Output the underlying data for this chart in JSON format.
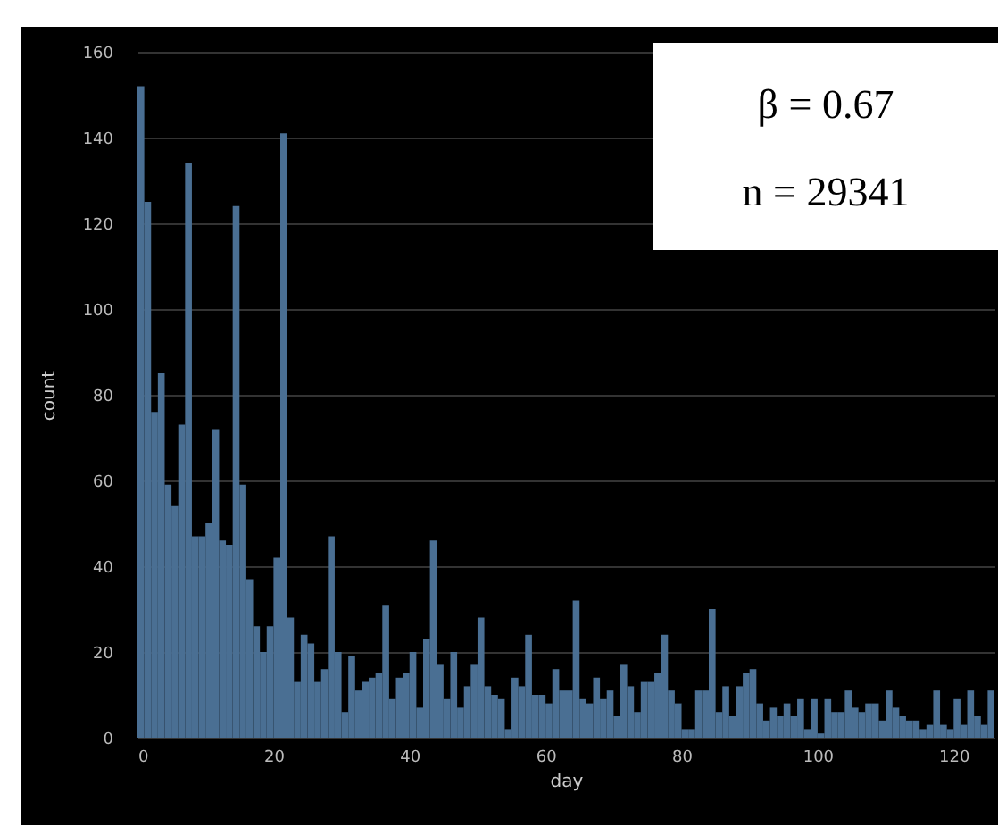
{
  "chart_data": {
    "type": "histogram",
    "xlabel": "day",
    "ylabel": "count",
    "color": "#4a6f93",
    "bins": [
      0,
      1,
      2,
      3,
      4,
      5,
      6,
      7,
      8,
      9,
      10,
      11,
      12,
      13,
      14,
      15,
      16,
      17,
      18,
      19,
      20,
      21,
      22,
      23,
      24,
      25,
      26,
      27,
      28,
      29,
      30,
      31,
      32,
      33,
      34,
      35,
      36,
      37,
      38,
      39,
      40,
      41,
      42,
      43,
      44,
      45,
      46,
      47,
      48,
      49,
      50,
      51,
      52,
      53,
      54,
      55,
      56,
      57,
      58,
      59,
      60,
      61,
      62,
      63,
      64,
      65,
      66,
      67,
      68,
      69,
      70,
      71,
      72,
      73,
      74,
      75,
      76,
      77,
      78,
      79,
      80,
      81,
      82,
      83,
      84,
      85,
      86,
      87,
      88,
      89,
      90,
      91,
      92,
      93,
      94,
      95,
      96,
      97,
      98,
      99,
      100,
      101,
      102,
      103,
      104,
      105,
      106,
      107,
      108,
      109,
      110,
      111,
      112,
      113,
      114,
      115,
      116,
      117,
      118,
      119,
      120,
      121,
      122,
      123,
      124,
      125,
      126
    ],
    "values": [
      152,
      125,
      76,
      85,
      59,
      54,
      73,
      134,
      47,
      47,
      50,
      72,
      46,
      45,
      124,
      59,
      37,
      26,
      20,
      26,
      42,
      141,
      28,
      13,
      24,
      22,
      13,
      16,
      47,
      20,
      6,
      19,
      11,
      13,
      14,
      15,
      31,
      9,
      14,
      15,
      20,
      7,
      23,
      46,
      17,
      9,
      20,
      7,
      12,
      17,
      28,
      12,
      10,
      9,
      2,
      14,
      12,
      24,
      10,
      10,
      8,
      16,
      11,
      11,
      32,
      9,
      8,
      14,
      9,
      11,
      5,
      17,
      12,
      6,
      13,
      13,
      15,
      24,
      11,
      8,
      2,
      2,
      11,
      11,
      30,
      6,
      12,
      5,
      12,
      15,
      16,
      8,
      4,
      7,
      5,
      8,
      5,
      9,
      2,
      9,
      1,
      9,
      6,
      6,
      11,
      7,
      6,
      8,
      8,
      4,
      11,
      7,
      5,
      4,
      4,
      2,
      3,
      11,
      3,
      2,
      9,
      3,
      11,
      5,
      3,
      11
    ],
    "xlim": [
      0,
      126
    ],
    "xticks": [
      0,
      20,
      40,
      60,
      80,
      100,
      120
    ],
    "ylim": [
      0,
      160
    ],
    "yticks": [
      0,
      20,
      40,
      60,
      80,
      100,
      120,
      140,
      160
    ],
    "grid": "y",
    "annotations": [
      "β = 0.67",
      "n = 29341"
    ]
  }
}
